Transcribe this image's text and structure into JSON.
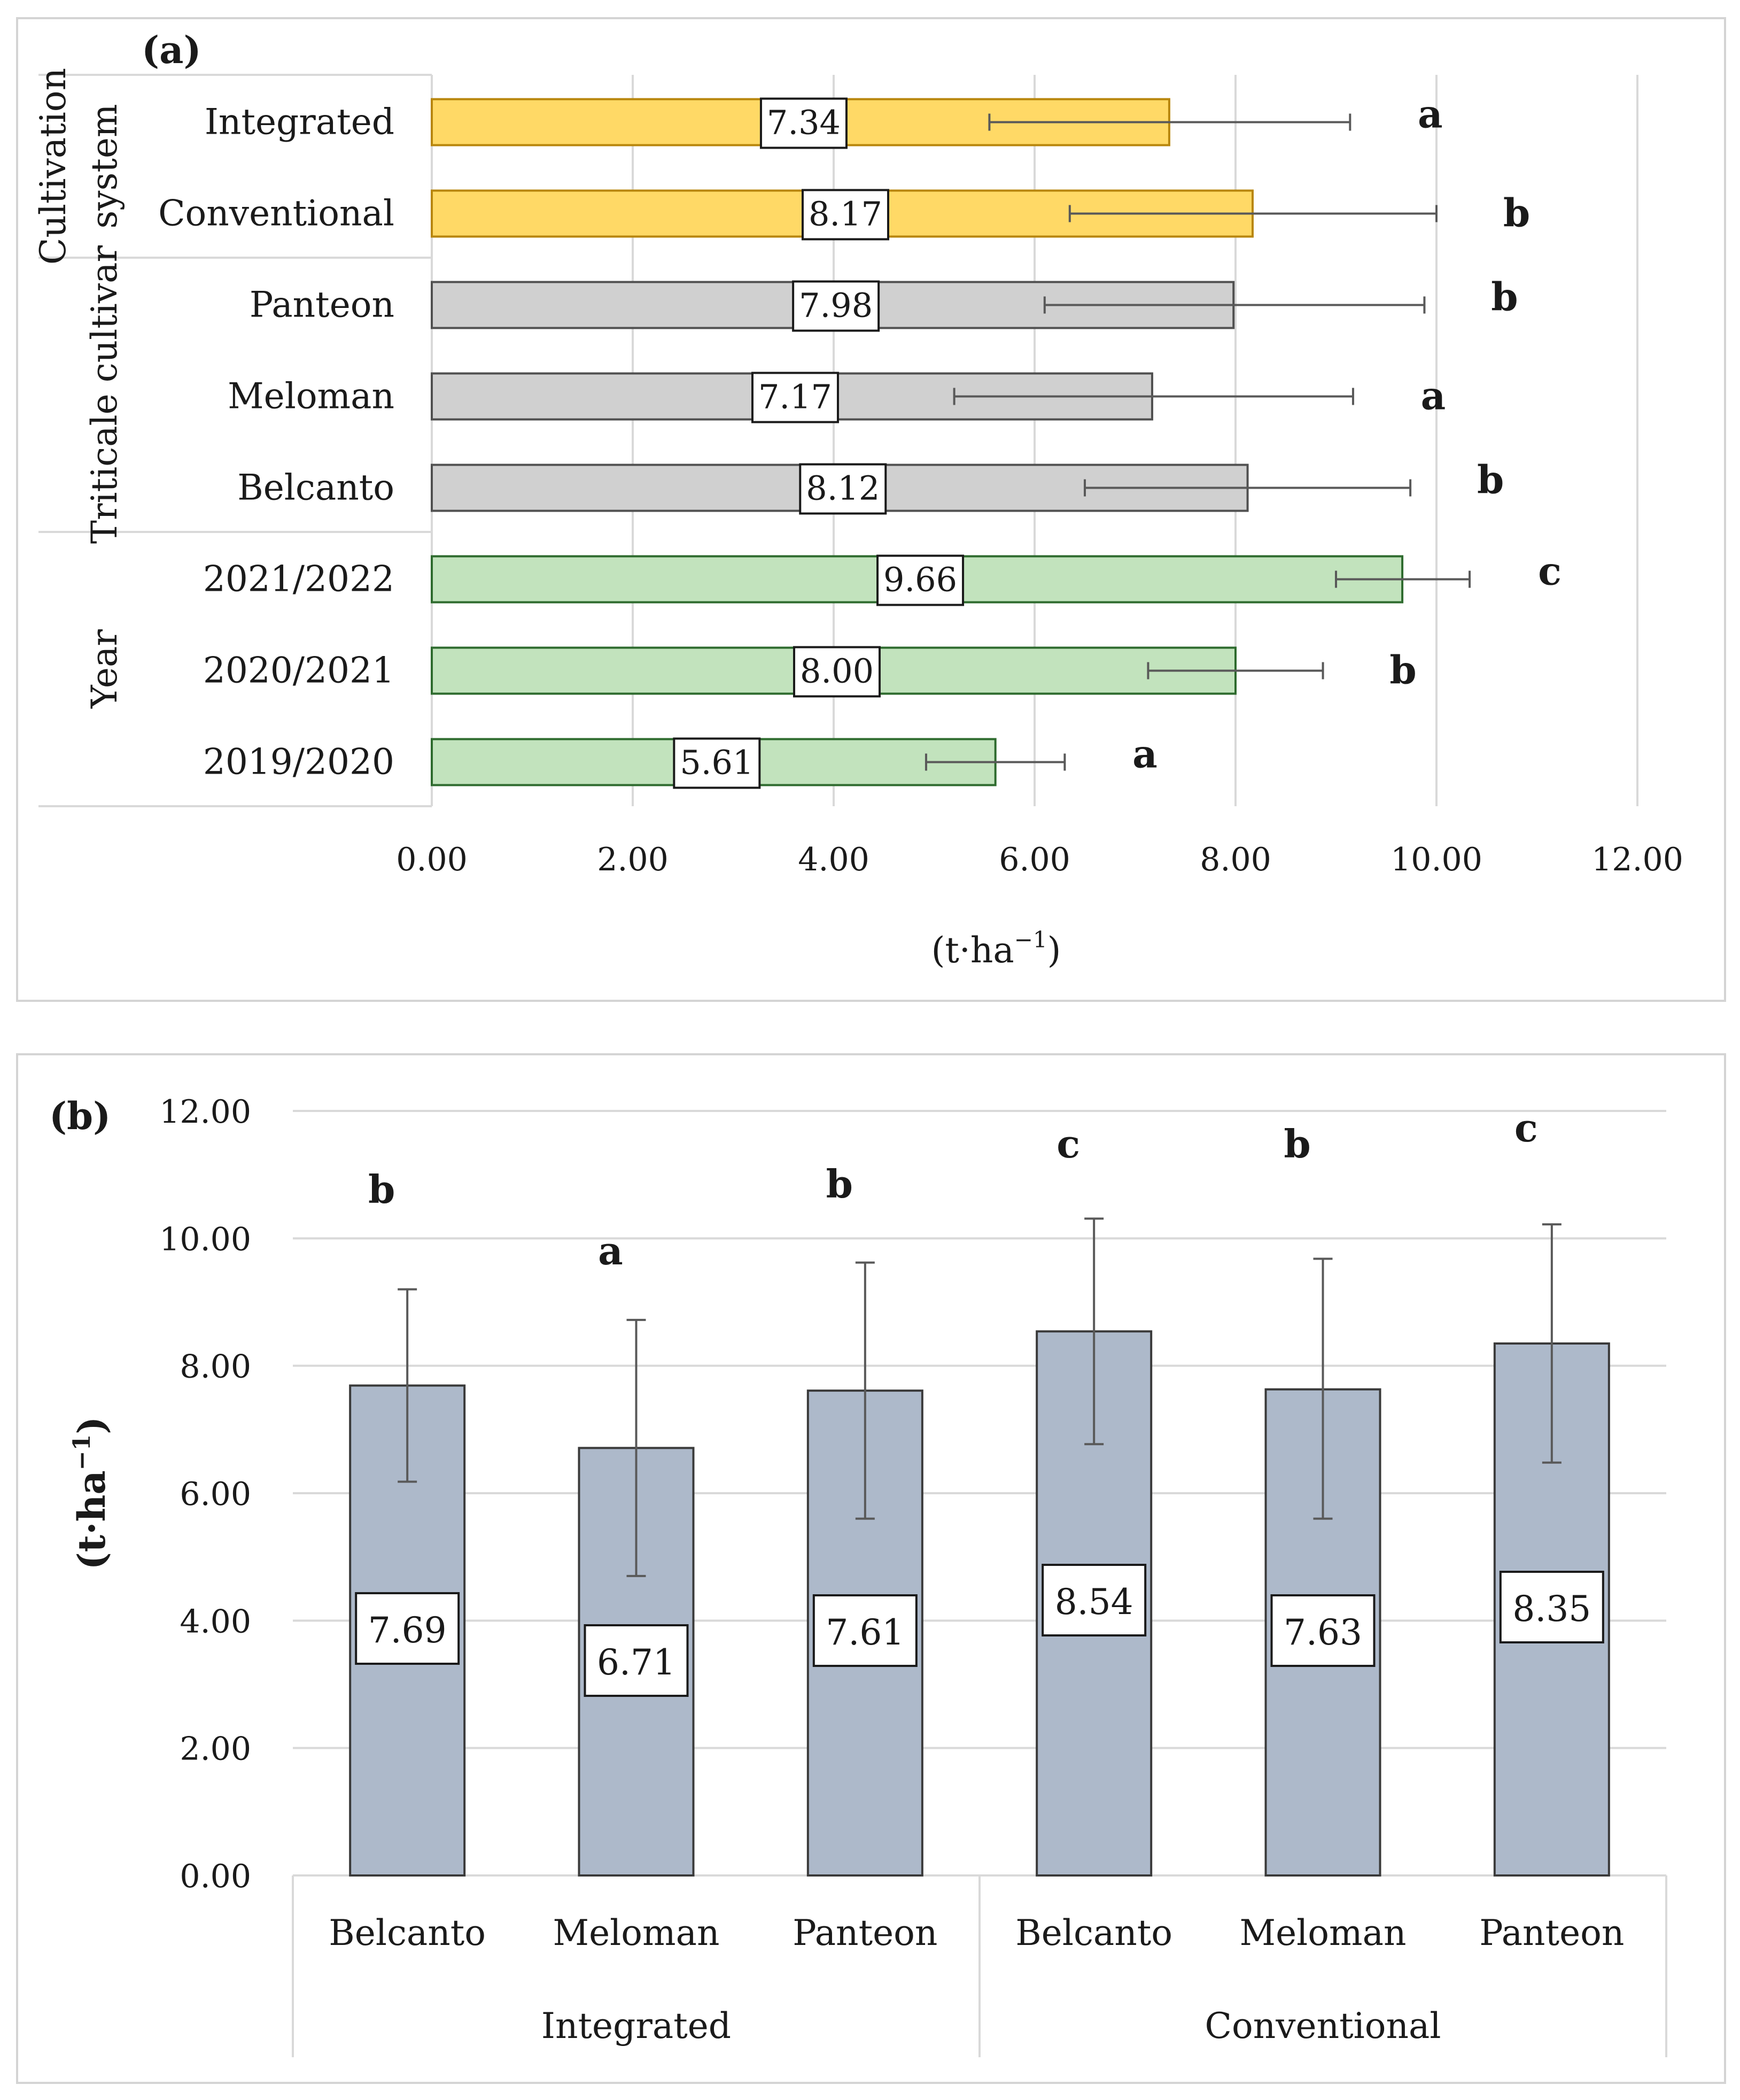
{
  "chart_data": [
    {
      "type": "bar",
      "orientation": "horizontal",
      "panel_label": "(a)",
      "xlabel_base": "(t·ha",
      "xlabel_sup": "−1",
      "xlabel_close": ")",
      "xlim": [
        0,
        12
      ],
      "ticks": [
        "0.00",
        "2.00",
        "4.00",
        "6.00",
        "8.00",
        "10.00",
        "12.00"
      ],
      "grid": "vertical",
      "groups": [
        {
          "label_lines": [
            "Cultivation",
            "system"
          ],
          "color": "#ffd966",
          "edge": "#b8860b",
          "items": [
            {
              "category": "Integrated",
              "value": 7.34,
              "label": "7.34",
              "err_low": 5.55,
              "err_high": 9.14,
              "letter": "a"
            },
            {
              "category": "Conventional",
              "value": 8.17,
              "label": "8.17",
              "err_low": 6.35,
              "err_high": 10.0,
              "letter": "b"
            }
          ]
        },
        {
          "label_lines": [
            "Triticale cultivar"
          ],
          "color": "#d0d0d0",
          "edge": "#505050",
          "items": [
            {
              "category": "Panteon",
              "value": 7.98,
              "label": "7.98",
              "err_low": 6.1,
              "err_high": 9.88,
              "letter": "b"
            },
            {
              "category": "Meloman",
              "value": 7.17,
              "label": "7.17",
              "err_low": 5.2,
              "err_high": 9.17,
              "letter": "a"
            },
            {
              "category": "Belcanto",
              "value": 8.12,
              "label": "8.12",
              "err_low": 6.5,
              "err_high": 9.74,
              "letter": "b"
            }
          ]
        },
        {
          "label_lines": [
            "Year"
          ],
          "color": "#c2e3bd",
          "edge": "#2e6b2e",
          "items": [
            {
              "category": "2021/2022",
              "value": 9.66,
              "label": "9.66",
              "err_low": 9.0,
              "err_high": 10.33,
              "letter": "c"
            },
            {
              "category": "2020/2021",
              "value": 8.0,
              "label": "8.00",
              "err_low": 7.13,
              "err_high": 8.87,
              "letter": "b"
            },
            {
              "category": "2019/2020",
              "value": 5.61,
              "label": "5.61",
              "err_low": 4.92,
              "err_high": 6.3,
              "letter": "a"
            }
          ]
        }
      ]
    },
    {
      "type": "bar",
      "orientation": "vertical",
      "panel_label": "(b)",
      "ylabel_base": "(t·ha",
      "ylabel_sup": "−1",
      "ylabel_close": ")",
      "ylim": [
        0,
        12
      ],
      "ticks": [
        "0.00",
        "2.00",
        "4.00",
        "6.00",
        "8.00",
        "10.00",
        "12.00"
      ],
      "grid": "horizontal",
      "color": "#adb9ca",
      "groups": [
        {
          "label": "Integrated",
          "items": [
            {
              "category": "Belcanto",
              "value": 7.69,
              "label": "7.69",
              "err_low": 6.18,
              "err_high": 9.2,
              "letter": "b"
            },
            {
              "category": "Meloman",
              "value": 6.71,
              "label": "6.71",
              "err_low": 4.7,
              "err_high": 8.72,
              "letter": "a"
            },
            {
              "category": "Panteon",
              "value": 7.61,
              "label": "7.61",
              "err_low": 5.6,
              "err_high": 9.62,
              "letter": "b"
            }
          ]
        },
        {
          "label": "Conventional",
          "items": [
            {
              "category": "Belcanto",
              "value": 8.54,
              "label": "8.54",
              "err_low": 6.77,
              "err_high": 10.31,
              "letter": "c"
            },
            {
              "category": "Meloman",
              "value": 7.63,
              "label": "7.63",
              "err_low": 5.6,
              "err_high": 9.68,
              "letter": "b"
            },
            {
              "category": "Panteon",
              "value": 8.35,
              "label": "8.35",
              "err_low": 6.48,
              "err_high": 10.22,
              "letter": "c"
            }
          ]
        }
      ]
    }
  ]
}
